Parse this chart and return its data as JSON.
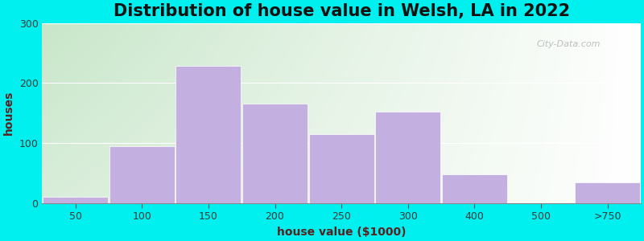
{
  "title": "Distribution of house value in Welsh, LA in 2022",
  "xlabel": "house value ($1000)",
  "ylabel": "houses",
  "bar_labels": [
    "50",
    "100",
    "150",
    "200",
    "250",
    "300",
    "400",
    "500",
    ">750"
  ],
  "bar_heights": [
    10,
    95,
    228,
    165,
    115,
    152,
    48,
    0,
    35
  ],
  "bar_color": "#c4b0e0",
  "bar_edge_color": "#c4b0e0",
  "outer_bg": "#00efef",
  "grad_top": "#c8e6c9",
  "grad_bottom": "#f1fff1",
  "grad_right": "#ffffff",
  "yticks": [
    0,
    100,
    200,
    300
  ],
  "ylim": [
    0,
    300
  ],
  "title_fontsize": 15,
  "axis_label_fontsize": 10,
  "tick_label_fontsize": 9,
  "watermark_text": "City-Data.com"
}
